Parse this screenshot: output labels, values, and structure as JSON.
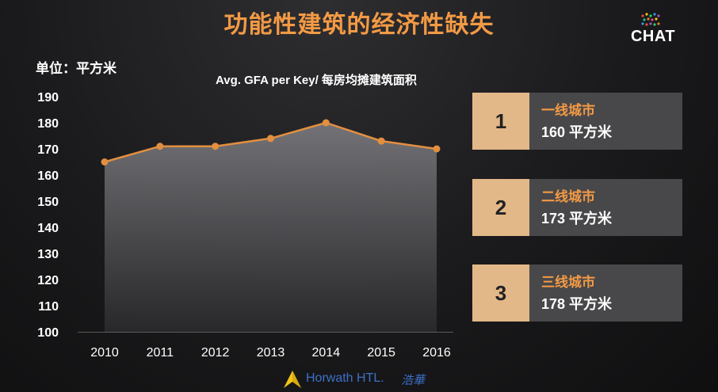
{
  "header": {
    "title": "功能性建筑的经济性缺失",
    "logo_text": "CHAT"
  },
  "unit_label": "单位：平方米",
  "chart_data": {
    "type": "area",
    "title": "Avg. GFA per Key/ 每房均摊建筑面积",
    "xlabel": "",
    "ylabel": "单位：平方米",
    "categories": [
      "2010",
      "2011",
      "2012",
      "2013",
      "2014",
      "2015",
      "2016"
    ],
    "values": [
      165,
      171,
      171,
      174,
      180,
      173,
      170
    ],
    "ylim": [
      100,
      190
    ],
    "yticks": [
      "100",
      "110",
      "120",
      "130",
      "140",
      "150",
      "160",
      "170",
      "180",
      "190"
    ],
    "grid": false,
    "line_color": "#e38f40",
    "fill_color": "#6a6a6e"
  },
  "cards": [
    {
      "number": "1",
      "name": "一线城市",
      "value": "160 平方米"
    },
    {
      "number": "2",
      "name": "二线城市",
      "value": "173 平方米"
    },
    {
      "number": "3",
      "name": "三线城市",
      "value": "178 平方米"
    }
  ],
  "footer": {
    "brand": "Horwath HTL.",
    "brand_cn": "浩華",
    "icon": "horwath-triangle-icon"
  }
}
